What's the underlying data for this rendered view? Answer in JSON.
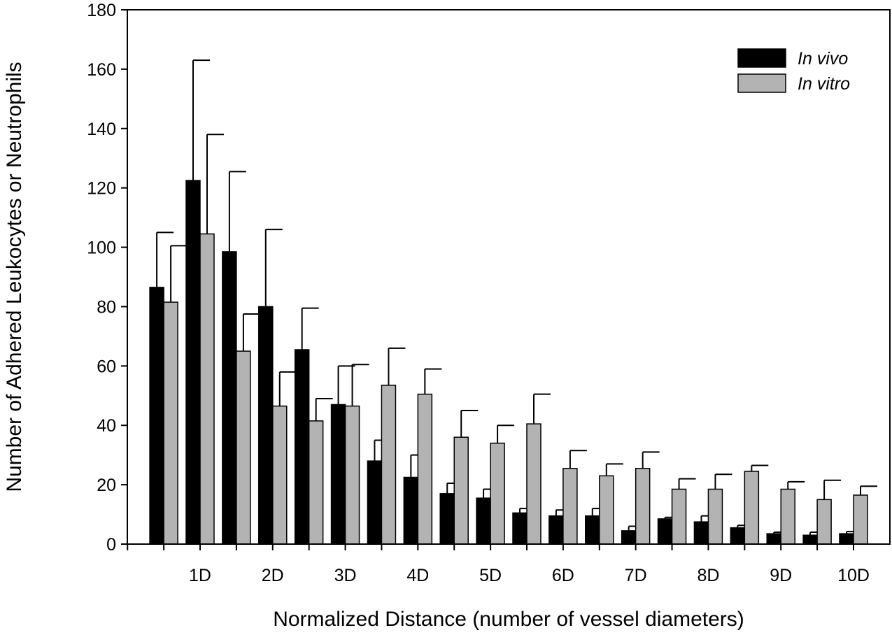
{
  "chart_data": {
    "type": "bar",
    "title": "",
    "xlabel": "Normalized Distance (number of vessel diameters)",
    "ylabel": "Number of Adhered Leukocytes or Neutrophils",
    "ylim": [
      0,
      180
    ],
    "yticks": [
      "0",
      "20",
      "40",
      "60",
      "80",
      "100",
      "120",
      "140",
      "160",
      "180"
    ],
    "xtick_labels": [
      "1D",
      "2D",
      "3D",
      "4D",
      "5D",
      "6D",
      "7D",
      "8D",
      "9D",
      "10D"
    ],
    "x_positions": [
      0.5,
      1,
      1.5,
      2,
      2.5,
      3,
      3.5,
      4,
      4.5,
      5,
      5.5,
      6,
      6.5,
      7,
      7.5,
      8,
      8.5,
      9,
      9.5,
      10
    ],
    "legend_position": "top-right",
    "series": [
      {
        "name": "In vivo",
        "color": "#000000",
        "values": [
          86.5,
          122.5,
          98.5,
          80,
          65.5,
          47,
          28,
          22.5,
          17,
          15.5,
          10.5,
          9.5,
          9.5,
          4.5,
          8.5,
          7.5,
          5.5,
          3.5,
          3,
          3.5
        ],
        "errors": [
          18.5,
          40.5,
          27,
          26,
          14,
          13,
          7,
          7.5,
          3.5,
          3,
          1.5,
          2,
          2.5,
          1.5,
          0.5,
          2,
          0.8,
          0.5,
          1,
          0.7
        ]
      },
      {
        "name": "In vitro",
        "color": "#b3b3b3",
        "values": [
          81.5,
          104.5,
          65,
          46.5,
          41.5,
          46.5,
          53.5,
          50.5,
          36,
          34,
          40.5,
          25.5,
          23,
          25.5,
          18.5,
          18.5,
          24.5,
          18.5,
          15,
          16.5
        ],
        "errors": [
          19,
          33.5,
          12.5,
          11.5,
          7.5,
          14,
          12.5,
          8.5,
          9,
          6,
          10,
          6,
          4,
          5.5,
          3.5,
          5,
          2,
          2.5,
          6.5,
          3
        ]
      }
    ]
  }
}
